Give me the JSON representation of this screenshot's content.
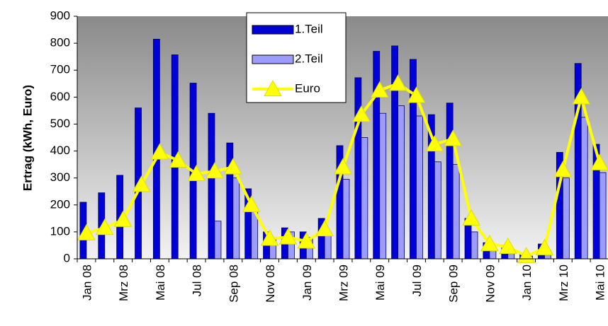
{
  "chart_data": {
    "type": "bar_line",
    "y_label": "Ertrag (kWh, Euro)",
    "categories": [
      "Jan 08",
      null,
      "Mrz 08",
      null,
      "Mai 08",
      null,
      "Jul 08",
      null,
      "Sep 08",
      null,
      "Nov 08",
      null,
      "Jan 09",
      null,
      "Mrz 09",
      null,
      "Mai 09",
      null,
      "Jul 09",
      null,
      "Sep 09",
      null,
      "Nov 09",
      null,
      "Jan 10",
      null,
      "Mrz 10",
      null,
      "Mai 10"
    ],
    "series": [
      {
        "name": "1.Teil",
        "type": "bar",
        "color": "#0000d8",
        "values": [
          210,
          245,
          310,
          560,
          815,
          757,
          652,
          540,
          430,
          260,
          100,
          115,
          100,
          150,
          420,
          672,
          770,
          790,
          740,
          535,
          578,
          150,
          60,
          40,
          20,
          55,
          395,
          725,
          425
        ]
      },
      {
        "name": "2.Teil",
        "type": "bar",
        "color": "#9c9cff",
        "values": [
          null,
          null,
          null,
          null,
          null,
          null,
          null,
          140,
          300,
          180,
          80,
          100,
          80,
          100,
          295,
          450,
          540,
          568,
          530,
          360,
          350,
          100,
          40,
          25,
          10,
          30,
          300,
          525,
          320
        ]
      },
      {
        "name": "Euro",
        "type": "line",
        "color": "#ffff00",
        "values": [
          95,
          115,
          145,
          275,
          395,
          365,
          315,
          325,
          340,
          200,
          75,
          80,
          65,
          110,
          340,
          535,
          625,
          650,
          605,
          425,
          445,
          150,
          55,
          45,
          10,
          40,
          330,
          600,
          355
        ]
      }
    ],
    "ylim": [
      0,
      900
    ],
    "yticks": [
      0,
      100,
      200,
      300,
      400,
      500,
      600,
      700,
      800,
      900
    ]
  }
}
